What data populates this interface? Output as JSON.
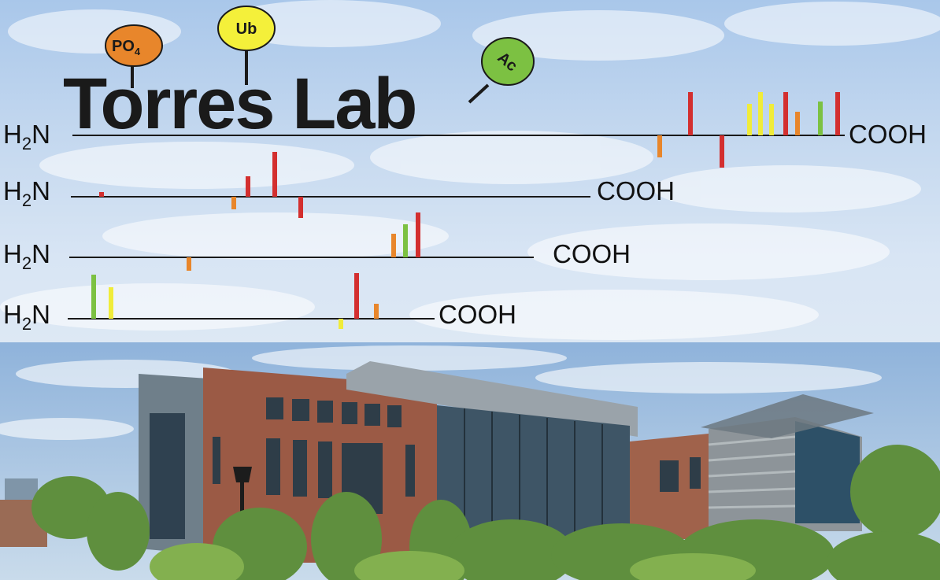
{
  "title": {
    "text": "Torres Lab",
    "color": "#1a1a1a"
  },
  "modifications": [
    {
      "label": "PO",
      "subscript": "4",
      "color": "#e8862b"
    },
    {
      "label": "Ub",
      "color": "#f4f03a"
    },
    {
      "label": "Ac",
      "color": "#7cc142"
    }
  ],
  "protein_chains": [
    {
      "n_term": "H",
      "n_sub": "2",
      "n_suffix": "N",
      "c_term": "COOH"
    },
    {
      "n_term": "H",
      "n_sub": "2",
      "n_suffix": "N",
      "c_term": "COOH"
    },
    {
      "n_term": "H",
      "n_sub": "2",
      "n_suffix": "N",
      "c_term": "COOH"
    },
    {
      "n_term": "H",
      "n_sub": "2",
      "n_suffix": "N",
      "c_term": "COOH"
    }
  ],
  "bar_colors": {
    "red": "#d32f2f",
    "orange": "#e8862b",
    "yellow": "#f0ec3a",
    "green": "#7cc142"
  },
  "photo": {
    "subject": "building-photo",
    "brick_color": "#9b5a45",
    "glass_color": "#3e5566",
    "tree_color": "#5f8f3e"
  }
}
